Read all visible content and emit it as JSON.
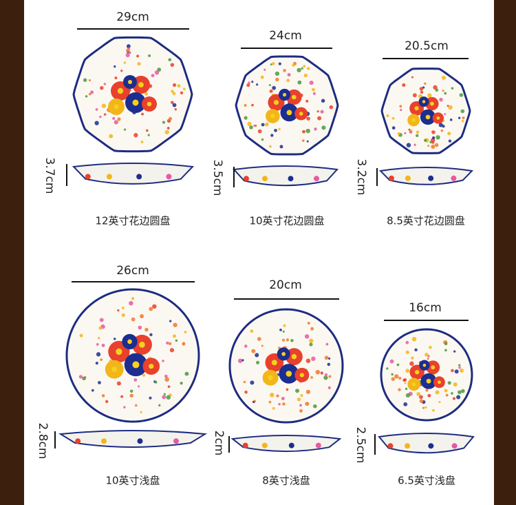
{
  "plates": [
    {
      "diameter": "29cm",
      "height": "3.7cm",
      "name": "12英寸花边圆盘"
    },
    {
      "diameter": "24cm",
      "height": "3.5cm",
      "name": "10英寸花边圆盘"
    },
    {
      "diameter": "20.5cm",
      "height": "3.2cm",
      "name": "8.5英寸花边圆盘"
    },
    {
      "diameter": "26cm",
      "height": "2.8cm",
      "name": "10英寸浅盘"
    },
    {
      "diameter": "20cm",
      "height": "2cm",
      "name": "8英寸浅盘"
    },
    {
      "diameter": "16cm",
      "height": "2.5cm",
      "name": "6.5英寸浅盘"
    }
  ]
}
